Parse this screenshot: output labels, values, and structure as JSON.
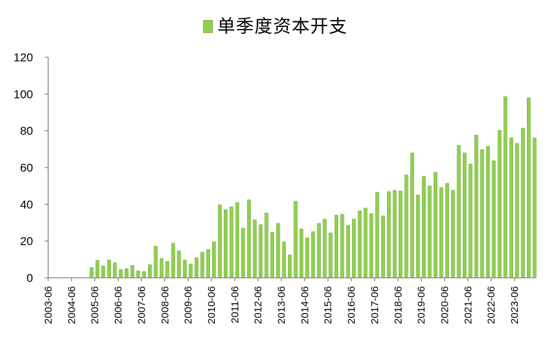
{
  "chart_data": {
    "type": "bar",
    "title": "",
    "legend": [
      {
        "label": "单季度资本开支",
        "color": "#92d050"
      }
    ],
    "legend_position": "top",
    "xlabel": "",
    "ylabel": "",
    "ylim": [
      0,
      120
    ],
    "yticks": [
      0,
      20,
      40,
      60,
      80,
      100,
      120
    ],
    "xtick_labels": [
      "2003-06",
      "2004-06",
      "2005-06",
      "2006-06",
      "2007-06",
      "2008-06",
      "2009-06",
      "2010-06",
      "2011-06",
      "2012-06",
      "2013-06",
      "2014-06",
      "2015-06",
      "2016-06",
      "2017-06",
      "2018-06",
      "2019-06",
      "2020-06",
      "2021-06",
      "2022-06",
      "2023-06"
    ],
    "grid": false,
    "categories": [
      "2003-06",
      "2003-09",
      "2003-12",
      "2004-03",
      "2004-06",
      "2004-09",
      "2004-12",
      "2005-03",
      "2005-06",
      "2005-09",
      "2005-12",
      "2006-03",
      "2006-06",
      "2006-09",
      "2006-12",
      "2007-03",
      "2007-06",
      "2007-09",
      "2007-12",
      "2008-03",
      "2008-06",
      "2008-09",
      "2008-12",
      "2009-03",
      "2009-06",
      "2009-09",
      "2009-12",
      "2010-03",
      "2010-06",
      "2010-09",
      "2010-12",
      "2011-03",
      "2011-06",
      "2011-09",
      "2011-12",
      "2012-03",
      "2012-06",
      "2012-09",
      "2012-12",
      "2013-03",
      "2013-06",
      "2013-09",
      "2013-12",
      "2014-03",
      "2014-06",
      "2014-09",
      "2014-12",
      "2015-03",
      "2015-06",
      "2015-09",
      "2015-12",
      "2016-03",
      "2016-06",
      "2016-09",
      "2016-12",
      "2017-03",
      "2017-06",
      "2017-09",
      "2017-12",
      "2018-03",
      "2018-06",
      "2018-09",
      "2018-12",
      "2019-03",
      "2019-06",
      "2019-09",
      "2019-12",
      "2020-03",
      "2020-06",
      "2020-09",
      "2020-12",
      "2021-03",
      "2021-06",
      "2021-09",
      "2021-12",
      "2022-03",
      "2022-06",
      "2022-09",
      "2022-12",
      "2023-03",
      "2023-06",
      "2023-09",
      "2023-12",
      "2024-03"
    ],
    "series": [
      {
        "name": "单季度资本开支",
        "color": "#92d050",
        "values": [
          null,
          null,
          null,
          null,
          null,
          null,
          null,
          5.6,
          9.4,
          6.4,
          9.7,
          8.2,
          4.5,
          4.9,
          6.7,
          3.7,
          3.4,
          7.1,
          17.2,
          10.5,
          9.0,
          18.8,
          14.6,
          9.7,
          7.5,
          10.9,
          13.9,
          15.4,
          19.5,
          39.7,
          37.1,
          38.6,
          40.9,
          27.0,
          42.4,
          31.5,
          28.9,
          35.2,
          24.7,
          29.6,
          19.5,
          12.4,
          41.6,
          26.6,
          21.7,
          25.1,
          29.6,
          31.9,
          24.4,
          34.1,
          34.5,
          28.5,
          31.9,
          36.4,
          37.9,
          34.9,
          46.5,
          33.7,
          46.9,
          47.6,
          47.2,
          55.9,
          67.9,
          45.0,
          55.1,
          49.9,
          57.4,
          49.1,
          51.4,
          47.6,
          72.0,
          67.9,
          61.9,
          77.6,
          69.7,
          71.6,
          63.7,
          80.2,
          98.6,
          76.1,
          73.1,
          81.4,
          97.9,
          76.1
        ]
      }
    ]
  },
  "legend": {
    "label": "单季度资本开支"
  }
}
